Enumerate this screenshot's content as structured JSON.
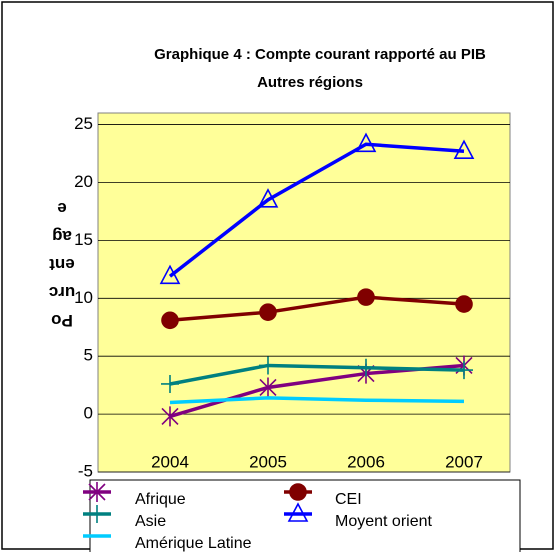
{
  "chart_data": {
    "type": "line",
    "title": "Graphique 4 : Compte courant rapporté au PIB",
    "subtitle": "Autres régions",
    "y_label": "Pourcentage",
    "categories": [
      "2004",
      "2005",
      "2006",
      "2007"
    ],
    "series": [
      {
        "name": "Afrique",
        "color": "#800080",
        "marker": "star",
        "values": [
          -0.2,
          2.3,
          3.5,
          4.2
        ]
      },
      {
        "name": "CEI",
        "color": "#800000",
        "marker": "circle",
        "values": [
          8.1,
          8.8,
          10.1,
          9.5
        ]
      },
      {
        "name": "Asie",
        "color": "#008080",
        "marker": "plus",
        "values": [
          2.6,
          4.2,
          4.0,
          3.8
        ]
      },
      {
        "name": "Moyent orient",
        "color": "#0000ff",
        "marker": "triangle",
        "values": [
          11.9,
          18.5,
          23.3,
          22.7
        ]
      },
      {
        "name": "Amérique Latine",
        "color": "#00ccff",
        "marker": "none",
        "values": [
          1.0,
          1.4,
          1.2,
          1.1
        ]
      }
    ],
    "ylim": [
      -5,
      26
    ],
    "yticks": [
      -5,
      0,
      5,
      10,
      15,
      20,
      25
    ],
    "grid": true
  }
}
